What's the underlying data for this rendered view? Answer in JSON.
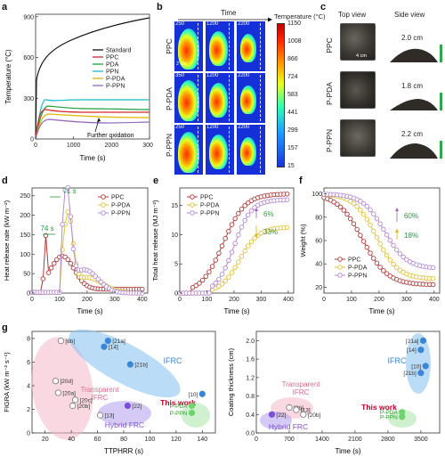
{
  "panels": [
    "a",
    "b",
    "c",
    "d",
    "e",
    "f",
    "g"
  ],
  "panel_a": {
    "xlabel": "Time (s)",
    "ylabel": "Temperature (°C)",
    "xticks": [
      "0",
      "1000",
      "2000",
      "3000"
    ],
    "yticks": [
      "0",
      "300",
      "600",
      "900"
    ],
    "annotation": "Further oxidation",
    "legend": [
      {
        "name": "Standard",
        "color": "#111111"
      },
      {
        "name": "PPC",
        "color": "#d62728"
      },
      {
        "name": "PDA",
        "color": "#1f9e3a"
      },
      {
        "name": "PPN",
        "color": "#17becf"
      },
      {
        "name": "P-PDA",
        "color": "#e3b400"
      },
      {
        "name": "P-PPN",
        "color": "#9467bd"
      }
    ]
  },
  "panel_b": {
    "header": "Time",
    "rows": [
      "PPC",
      "P-PDA",
      "P-PPN"
    ],
    "stamps": [
      [
        "250",
        "1200",
        "2200"
      ],
      [
        "350",
        "1200",
        "2200"
      ],
      [
        "250",
        "1200",
        "2200"
      ]
    ],
    "scale_label": "2 cm",
    "colorbar_title": "Temperature (°C)",
    "colorbar_ticks": [
      "1150",
      "1008",
      "866",
      "724",
      "583",
      "441",
      "299",
      "157",
      "15"
    ]
  },
  "panel_c": {
    "col_top": "Top view",
    "col_side": "Side view",
    "rows": [
      "PPC",
      "P-PDA",
      "P-PPN"
    ],
    "thickness": [
      "2.0 cm",
      "1.8 cm",
      "2.2 cm"
    ],
    "scale_label": "4 cm"
  },
  "panel_d": {
    "xlabel": "Time (s)",
    "ylabel": "Heat release rate (kW m⁻²)",
    "xticks": [
      "0",
      "100",
      "200",
      "300",
      "400"
    ],
    "yticks": [
      "0",
      "50",
      "100",
      "150",
      "200",
      "250"
    ],
    "ann_top": "71 s",
    "ann_bottom": "74 s",
    "legend": [
      {
        "name": "PPC",
        "color": "#b03a3a"
      },
      {
        "name": "P-PDA",
        "color": "#e3c23a"
      },
      {
        "name": "P-PPN",
        "color": "#b58ad6"
      }
    ]
  },
  "panel_e": {
    "xlabel": "Time (s)",
    "ylabel": "Total heat release (MJ m⁻²)",
    "xticks": [
      "0",
      "100",
      "200",
      "300",
      "400"
    ],
    "yticks": [
      "0",
      "5",
      "10",
      "15"
    ],
    "ann1": "6%",
    "ann2": "33%",
    "legend": [
      {
        "name": "PPC",
        "color": "#b03a3a"
      },
      {
        "name": "P-PDA",
        "color": "#e3c23a"
      },
      {
        "name": "P-PPN",
        "color": "#b58ad6"
      }
    ]
  },
  "panel_f": {
    "xlabel": "Time (s)",
    "ylabel": "Weight (%)",
    "xticks": [
      "0",
      "100",
      "200",
      "300",
      "400"
    ],
    "yticks": [
      "20",
      "40",
      "60",
      "80",
      "100"
    ],
    "ann1": "60%",
    "ann2": "18%",
    "legend": [
      {
        "name": "PPC",
        "color": "#b03a3a"
      },
      {
        "name": "P-PDA",
        "color": "#e3c23a"
      },
      {
        "name": "P-PPN",
        "color": "#b58ad6"
      }
    ]
  },
  "panel_g1": {
    "xlabel": "TTPHRR (s)",
    "ylabel": "FIGRA (kW m⁻² s⁻¹)",
    "xticks": [
      "20",
      "40",
      "60",
      "80",
      "100",
      "120",
      "140"
    ],
    "yticks": [
      "0",
      "2",
      "4",
      "6",
      "8"
    ],
    "regions": [
      {
        "label": "Transparent\nIFRC",
        "color": "#f4b8c8"
      },
      {
        "label": "IFRC",
        "color": "#8ec5f0"
      },
      {
        "label": "Hybrid FRC",
        "color": "#b9a6ef"
      }
    ],
    "this_work": "This work",
    "points": [
      {
        "ref": "[8b]",
        "x": 32,
        "y": 7.8,
        "color": "#ffffff"
      },
      {
        "ref": "[21a]",
        "x": 68,
        "y": 7.8,
        "color": "#3a86d6"
      },
      {
        "ref": "[14]",
        "x": 65,
        "y": 7.3,
        "color": "#3a86d6"
      },
      {
        "ref": "[21b]",
        "x": 85,
        "y": 5.8,
        "color": "#3a86d6"
      },
      {
        "ref": "[20d]",
        "x": 28,
        "y": 4.4,
        "color": "#ffffff"
      },
      {
        "ref": "[20a]",
        "x": 30,
        "y": 3.4,
        "color": "#ffffff"
      },
      {
        "ref": "[20c]",
        "x": 43,
        "y": 2.8,
        "color": "#ffffff"
      },
      {
        "ref": "[20b]",
        "x": 41,
        "y": 2.3,
        "color": "#ffffff"
      },
      {
        "ref": "[22]",
        "x": 83,
        "y": 2.3,
        "color": "#7b4fd6"
      },
      {
        "ref": "[13]",
        "x": 62,
        "y": 1.5,
        "color": "#ffffff"
      },
      {
        "ref": "[10]",
        "x": 140,
        "y": 3.3,
        "color": "#3a86d6"
      },
      {
        "ref": "P-PDA",
        "x": 132,
        "y": 2.3,
        "color": "#6fd36f"
      },
      {
        "ref": "P-PPN",
        "x": 132,
        "y": 1.7,
        "color": "#6fd36f"
      }
    ]
  },
  "panel_g2": {
    "xlabel": "Time (s)",
    "ylabel": "Coating thickness (cm)",
    "xticks": [
      "0",
      "700",
      "1400",
      "2100",
      "2800",
      "3500"
    ],
    "yticks": [
      "0.0",
      "0.4",
      "0.8",
      "1.2",
      "1.6",
      "2.0"
    ],
    "regions": [
      {
        "label": "Transparent\nIFRC",
        "color": "#f4b8c8"
      },
      {
        "label": "IFRC",
        "color": "#8ec5f0"
      },
      {
        "label": "Hybrid FRC",
        "color": "#b9a6ef"
      }
    ],
    "this_work": "This work",
    "points": [
      {
        "ref": "[21a]",
        "x": 3550,
        "y": 2.0,
        "color": "#3a86d6"
      },
      {
        "ref": "[14]",
        "x": 3500,
        "y": 1.8,
        "color": "#3a86d6"
      },
      {
        "ref": "[10]",
        "x": 3600,
        "y": 1.45,
        "color": "#3a86d6"
      },
      {
        "ref": "[21b]",
        "x": 3500,
        "y": 1.3,
        "color": "#3a86d6"
      },
      {
        "ref": "[8b]",
        "x": 700,
        "y": 0.55,
        "color": "#ffffff"
      },
      {
        "ref": "[13]",
        "x": 850,
        "y": 0.5,
        "color": "#ffffff"
      },
      {
        "ref": "[22]",
        "x": 330,
        "y": 0.4,
        "color": "#7b4fd6"
      },
      {
        "ref": "[20b]",
        "x": 1000,
        "y": 0.4,
        "color": "#ffffff"
      },
      {
        "ref": "P-PDA",
        "x": 3100,
        "y": 0.45,
        "color": "#6fd36f"
      },
      {
        "ref": "P-PPN",
        "x": 3100,
        "y": 0.35,
        "color": "#6fd36f"
      }
    ]
  }
}
